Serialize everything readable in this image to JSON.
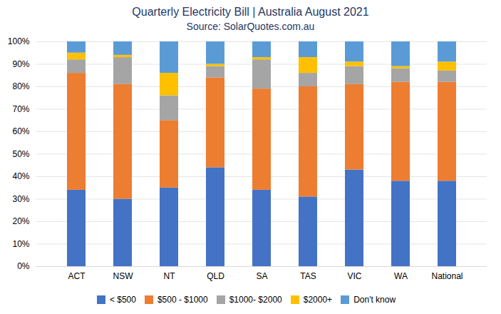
{
  "chart_data": {
    "type": "bar",
    "stacked": true,
    "title": "Quarterly Electricity Bill | Australia August 2021",
    "subtitle": "Source: SolarQuotes.com.au",
    "categories": [
      "ACT",
      "NSW",
      "NT",
      "QLD",
      "SA",
      "TAS",
      "VIC",
      "WA",
      "National"
    ],
    "series": [
      {
        "name": "< $500",
        "color": "#4472c4",
        "values": [
          34,
          30,
          35,
          44,
          34,
          31,
          43,
          38,
          38
        ]
      },
      {
        "name": "$500 - $1000",
        "color": "#ed7d31",
        "values": [
          52,
          51,
          30,
          40,
          45,
          49,
          38,
          44,
          44
        ]
      },
      {
        "name": "$1000- $2000",
        "color": "#a5a5a5",
        "values": [
          6,
          12,
          11,
          5,
          13,
          6,
          8,
          6,
          5
        ]
      },
      {
        "name": "$2000+",
        "color": "#ffc000",
        "values": [
          3,
          1,
          10,
          1,
          1,
          7,
          2,
          1,
          4
        ]
      },
      {
        "name": "Don't know",
        "color": "#5b9bd5",
        "values": [
          5,
          6,
          14,
          10,
          7,
          7,
          9,
          11,
          9
        ]
      }
    ],
    "ylim": [
      0,
      100
    ],
    "yticks": [
      {
        "value": 0,
        "label": "0%"
      },
      {
        "value": 10,
        "label": "10%"
      },
      {
        "value": 20,
        "label": "20%"
      },
      {
        "value": 30,
        "label": "30%"
      },
      {
        "value": 40,
        "label": "40%"
      },
      {
        "value": 50,
        "label": "50%"
      },
      {
        "value": 60,
        "label": "60%"
      },
      {
        "value": 70,
        "label": "70%"
      },
      {
        "value": 80,
        "label": "80%"
      },
      {
        "value": 90,
        "label": "90%"
      },
      {
        "value": 100,
        "label": "100%"
      }
    ],
    "grid": true,
    "legend": "bottom"
  }
}
